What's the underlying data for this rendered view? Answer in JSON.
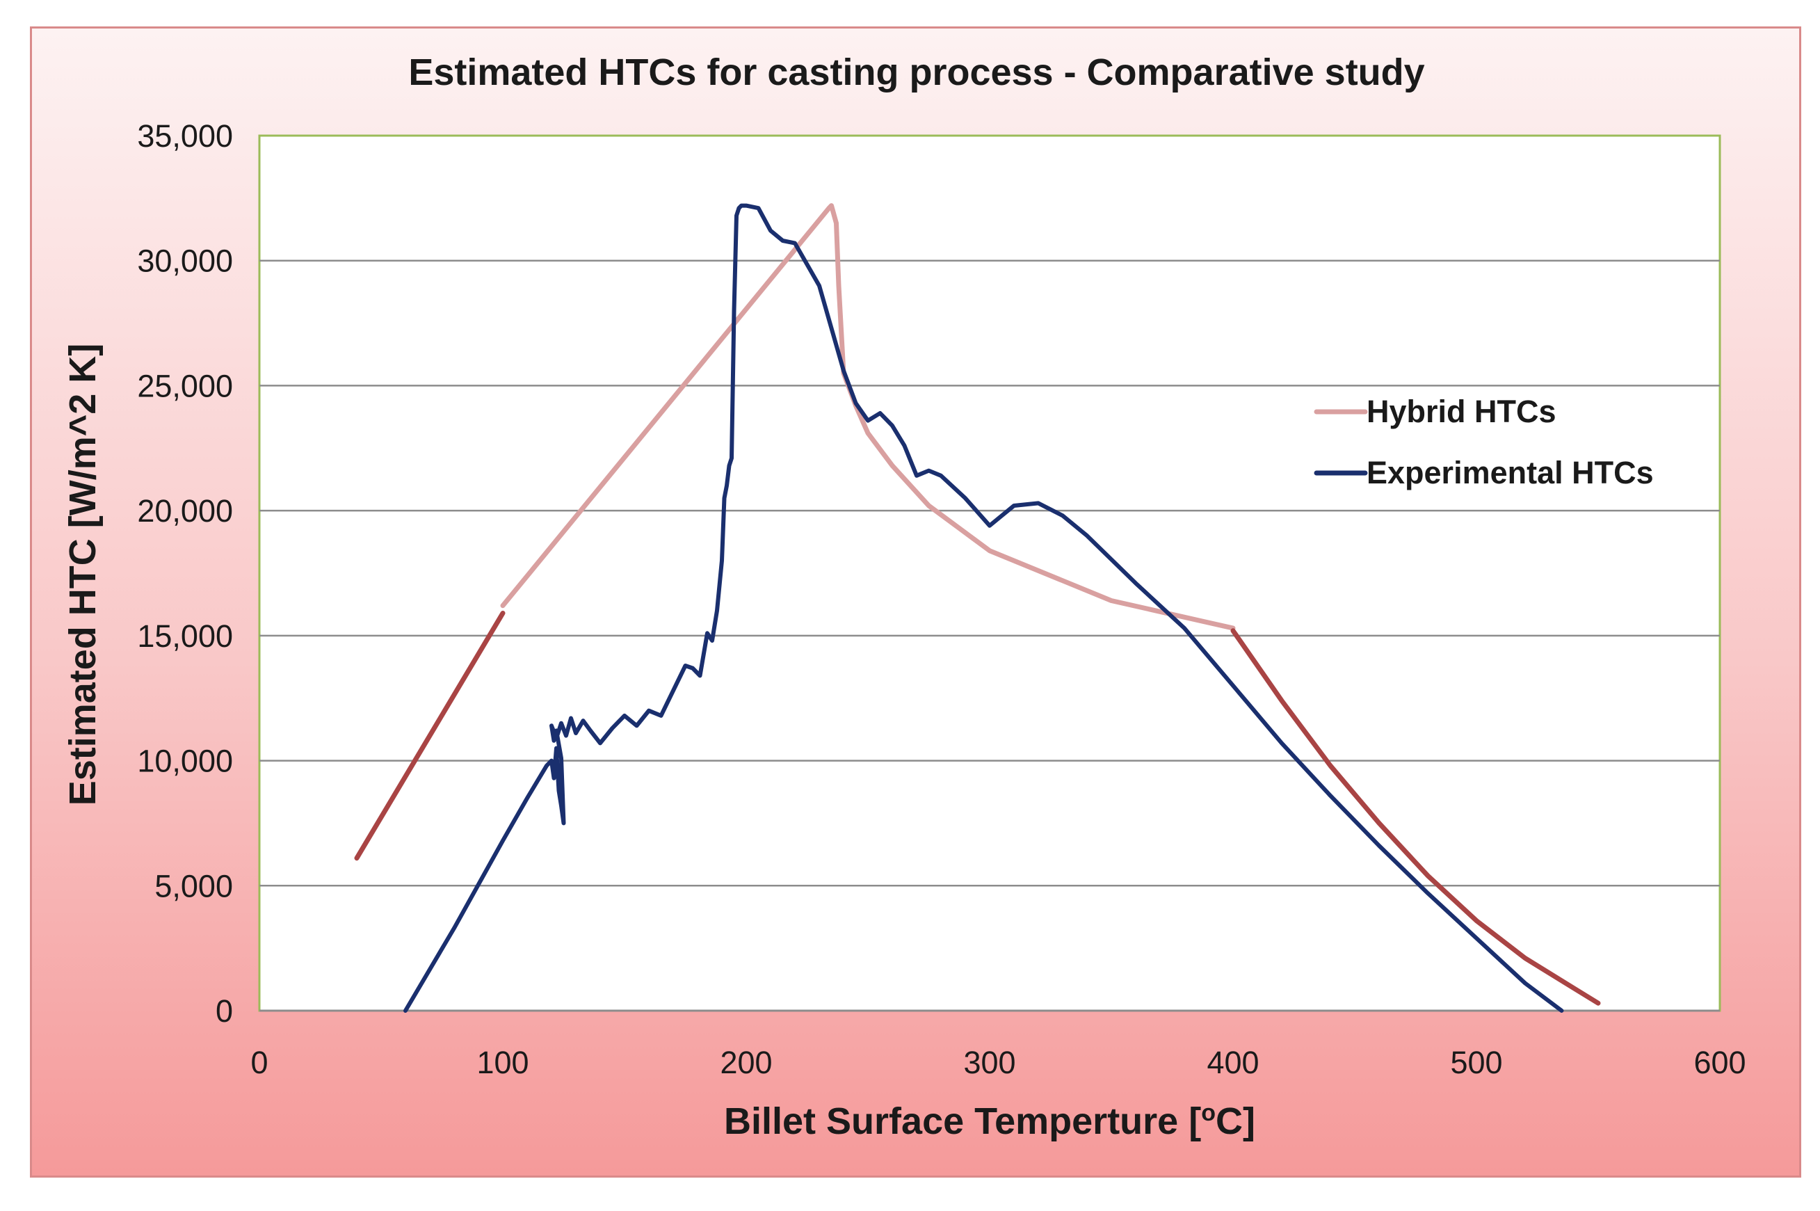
{
  "chart_data": {
    "type": "line",
    "title": "Estimated HTCs for casting process - Comparative study",
    "xlabel": "Billet Surface Temperture [",
    "xlabel_sup": "o",
    "xlabel_tail": "C]",
    "ylabel": "Estimated HTC  [W/m^2 K]",
    "xlim": [
      0,
      600
    ],
    "ylim": [
      0,
      35000
    ],
    "x_ticks": [
      0,
      100,
      200,
      300,
      400,
      500,
      600
    ],
    "x_tick_labels": [
      "0",
      "100",
      "200",
      "300",
      "400",
      "500",
      "600"
    ],
    "y_ticks": [
      0,
      5000,
      10000,
      15000,
      20000,
      25000,
      30000,
      35000
    ],
    "y_tick_labels": [
      "0",
      "5,000",
      "10,000",
      "15,000",
      "20,000",
      "25,000",
      "30,000",
      "35,000"
    ],
    "grid": "horizontal",
    "legend_position": "right",
    "series": [
      {
        "name": "Hybrid HTCs",
        "color": "#d9a0a0",
        "segments": [
          {
            "color": "#a94444",
            "x": [
              40,
              100
            ],
            "y": [
              6100,
              15900
            ]
          },
          {
            "color": "#d9a0a0",
            "x": [
              100,
              234,
              235,
              237,
              238,
              240,
              245,
              250,
              260,
              275,
              300,
              350,
              400
            ],
            "y": [
              16200,
              32100,
              32200,
              31500,
              29000,
              25500,
              24200,
              23100,
              21800,
              20200,
              18400,
              16400,
              15300
            ]
          },
          {
            "color": "#a94444",
            "x": [
              400,
              420,
              440,
              460,
              480,
              500,
              520,
              540,
              550
            ],
            "y": [
              15200,
              12400,
              9800,
              7500,
              5400,
              3600,
              2100,
              900,
              300
            ]
          }
        ]
      },
      {
        "name": "Experimental HTCs",
        "color": "#1a2f6e",
        "x": [
          60,
          80,
          100,
          110,
          118,
          120,
          121,
          122,
          123,
          124,
          125,
          124,
          122,
          121,
          120,
          122,
          124,
          126,
          128,
          130,
          133,
          136,
          140,
          145,
          150,
          155,
          160,
          165,
          170,
          175,
          178,
          181,
          184,
          186,
          188,
          190,
          191,
          192,
          193,
          194,
          195,
          196,
          197,
          198,
          199,
          200,
          205,
          210,
          215,
          220,
          230,
          240,
          245,
          250,
          255,
          260,
          265,
          270,
          275,
          280,
          290,
          300,
          305,
          310,
          320,
          330,
          340,
          360,
          380,
          400,
          420,
          440,
          460,
          480,
          500,
          520,
          535
        ],
        "y": [
          0,
          3300,
          6800,
          8500,
          9800,
          10000,
          9300,
          10500,
          8800,
          8200,
          7500,
          10100,
          11200,
          10800,
          11400,
          10900,
          11500,
          11000,
          11700,
          11100,
          11600,
          11200,
          10700,
          11300,
          11800,
          11400,
          12000,
          11800,
          12800,
          13800,
          13700,
          13400,
          15100,
          14800,
          16000,
          18000,
          20500,
          21000,
          21800,
          22100,
          28000,
          31800,
          32100,
          32200,
          32200,
          32200,
          32100,
          31200,
          30800,
          30700,
          29000,
          25600,
          24300,
          23600,
          23900,
          23400,
          22600,
          21400,
          21600,
          21400,
          20500,
          19400,
          19800,
          20200,
          20300,
          19800,
          19000,
          17100,
          15300,
          13000,
          10700,
          8600,
          6600,
          4700,
          2900,
          1100,
          0
        ]
      }
    ]
  }
}
